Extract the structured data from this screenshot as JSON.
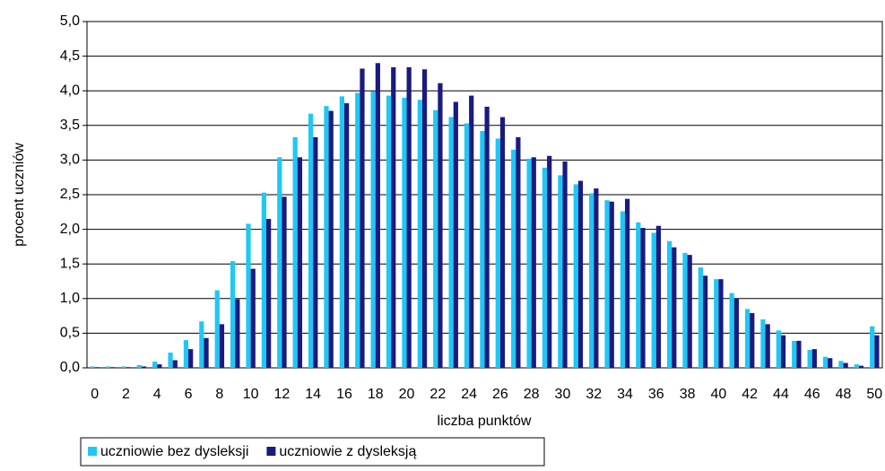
{
  "chart_data": {
    "type": "bar",
    "x_label": "liczba punktów",
    "y_label": "procent uczniów",
    "categories": [
      "0",
      null,
      "2",
      null,
      "4",
      null,
      "6",
      null,
      "8",
      null,
      "10",
      null,
      "12",
      null,
      "14",
      null,
      "16",
      null,
      "18",
      null,
      "20",
      null,
      "22",
      null,
      "24",
      null,
      "26",
      null,
      "28",
      null,
      "30",
      null,
      "32",
      null,
      "34",
      null,
      "36",
      null,
      "38",
      null,
      "40",
      null,
      "42",
      null,
      "44",
      null,
      "46",
      null,
      "48",
      null,
      "50"
    ],
    "series": [
      {
        "name": "uczniowie bez dysleksji",
        "color": "#1ec8f5",
        "values": [
          0.02,
          0.02,
          0.02,
          0.04,
          0.09,
          0.22,
          0.4,
          0.67,
          1.12,
          1.54,
          2.08,
          2.53,
          3.04,
          3.33,
          3.67,
          3.78,
          3.92,
          3.97,
          3.99,
          3.93,
          3.9,
          3.87,
          3.72,
          3.62,
          3.53,
          3.42,
          3.31,
          3.15,
          3.02,
          2.89,
          2.78,
          2.65,
          2.52,
          2.42,
          2.26,
          2.1,
          1.95,
          1.83,
          1.66,
          1.45,
          1.28,
          1.08,
          0.85,
          0.7,
          0.54,
          0.39,
          0.26,
          0.16,
          0.1,
          0.05,
          0.6
        ]
      },
      {
        "name": "uczniowie z dysleksją",
        "color": "#1a1a80",
        "values": [
          0.01,
          0.01,
          0.01,
          0.02,
          0.05,
          0.11,
          0.27,
          0.43,
          0.63,
          0.99,
          1.43,
          2.15,
          2.47,
          3.04,
          3.33,
          3.71,
          3.82,
          4.32,
          4.4,
          4.34,
          4.34,
          4.31,
          4.11,
          3.84,
          3.93,
          3.77,
          3.62,
          3.33,
          3.04,
          3.06,
          2.98,
          2.7,
          2.59,
          2.4,
          2.44,
          2.02,
          2.05,
          1.74,
          1.63,
          1.33,
          1.28,
          1.0,
          0.79,
          0.63,
          0.47,
          0.39,
          0.27,
          0.14,
          0.07,
          0.03,
          0.47
        ]
      }
    ],
    "ylim": [
      0,
      5
    ],
    "yticks": [
      {
        "value": 0,
        "label": "0,0"
      },
      {
        "value": 0.5,
        "label": "0,5"
      },
      {
        "value": 1,
        "label": "1,0"
      },
      {
        "value": 1.5,
        "label": "1,5"
      },
      {
        "value": 2,
        "label": "2,0"
      },
      {
        "value": 2.5,
        "label": "2,5"
      },
      {
        "value": 3,
        "label": "3,0"
      },
      {
        "value": 3.5,
        "label": "3,5"
      },
      {
        "value": 4,
        "label": "4,0"
      },
      {
        "value": 4.5,
        "label": "4,5"
      },
      {
        "value": 5,
        "label": "5,0"
      }
    ],
    "grid": true,
    "legend_position": "bottom-left"
  }
}
